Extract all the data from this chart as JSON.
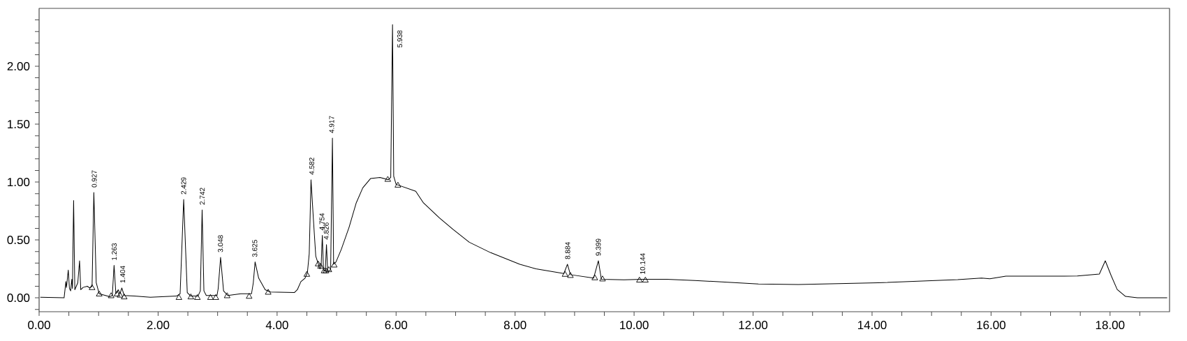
{
  "chart_data": {
    "type": "line",
    "xlim": [
      0,
      19
    ],
    "ylim": [
      -0.12,
      2.5
    ],
    "xticks": [
      {
        "value": 0,
        "label": "0.00"
      },
      {
        "value": 0.5,
        "label": null
      },
      {
        "value": 1,
        "label": null
      },
      {
        "value": 1.5,
        "label": null
      },
      {
        "value": 2,
        "label": "2.00"
      },
      {
        "value": 2.5,
        "label": null
      },
      {
        "value": 3,
        "label": null
      },
      {
        "value": 3.5,
        "label": null
      },
      {
        "value": 4,
        "label": "4.00"
      },
      {
        "value": 4.5,
        "label": null
      },
      {
        "value": 5,
        "label": null
      },
      {
        "value": 5.5,
        "label": null
      },
      {
        "value": 6,
        "label": "6.00"
      },
      {
        "value": 6.5,
        "label": null
      },
      {
        "value": 7,
        "label": null
      },
      {
        "value": 7.5,
        "label": null
      },
      {
        "value": 8,
        "label": "8.00"
      },
      {
        "value": 8.5,
        "label": null
      },
      {
        "value": 9,
        "label": null
      },
      {
        "value": 9.5,
        "label": null
      },
      {
        "value": 10,
        "label": "10.00"
      },
      {
        "value": 10.5,
        "label": null
      },
      {
        "value": 11,
        "label": null
      },
      {
        "value": 11.5,
        "label": null
      },
      {
        "value": 12,
        "label": "12.00"
      },
      {
        "value": 12.5,
        "label": null
      },
      {
        "value": 13,
        "label": null
      },
      {
        "value": 13.5,
        "label": null
      },
      {
        "value": 14,
        "label": "14.00"
      },
      {
        "value": 14.5,
        "label": null
      },
      {
        "value": 15,
        "label": null
      },
      {
        "value": 15.5,
        "label": null
      },
      {
        "value": 16,
        "label": "16.00"
      },
      {
        "value": 16.5,
        "label": null
      },
      {
        "value": 17,
        "label": null
      },
      {
        "value": 17.5,
        "label": null
      },
      {
        "value": 18,
        "label": "18.00"
      },
      {
        "value": 18.5,
        "label": null
      }
    ],
    "yticks": [
      {
        "value": -0.1,
        "label": null
      },
      {
        "value": 0,
        "label": "0.00"
      },
      {
        "value": 0.1,
        "label": null
      },
      {
        "value": 0.2,
        "label": null
      },
      {
        "value": 0.3,
        "label": null
      },
      {
        "value": 0.4,
        "label": null
      },
      {
        "value": 0.5,
        "label": "0.50"
      },
      {
        "value": 0.6,
        "label": null
      },
      {
        "value": 0.7,
        "label": null
      },
      {
        "value": 0.8,
        "label": null
      },
      {
        "value": 0.9,
        "label": null
      },
      {
        "value": 1,
        "label": "1.00"
      },
      {
        "value": 1.1,
        "label": null
      },
      {
        "value": 1.2,
        "label": null
      },
      {
        "value": 1.3,
        "label": null
      },
      {
        "value": 1.4,
        "label": null
      },
      {
        "value": 1.5,
        "label": "1.50"
      },
      {
        "value": 1.6,
        "label": null
      },
      {
        "value": 1.7,
        "label": null
      },
      {
        "value": 1.8,
        "label": null
      },
      {
        "value": 1.9,
        "label": null
      },
      {
        "value": 2,
        "label": "2.00"
      },
      {
        "value": 2.1,
        "label": null
      },
      {
        "value": 2.2,
        "label": null
      },
      {
        "value": 2.3,
        "label": null
      },
      {
        "value": 2.4,
        "label": null
      }
    ],
    "series": [
      {
        "marker": "none",
        "color": "#000000",
        "x": [
          0.02,
          0.42,
          0.45,
          0.46,
          0.49,
          0.51,
          0.53,
          0.55,
          0.56,
          0.58,
          0.6,
          0.65,
          0.68,
          0.7,
          0.74,
          0.81,
          0.85,
          0.89,
          0.92,
          0.96,
          1.01,
          1.19,
          1.23,
          1.26,
          1.29,
          1.33,
          1.36,
          1.39,
          1.43,
          1.6,
          1.87,
          2.31,
          2.37,
          2.43,
          2.49,
          2.55,
          2.67,
          2.71,
          2.74,
          2.77,
          2.81,
          2.99,
          3.01,
          3.05,
          3.1,
          3.17,
          3.39,
          3.57,
          3.6,
          3.63,
          3.69,
          3.8,
          3.89,
          4.29,
          4.34,
          4.4,
          4.47,
          4.51,
          4.54,
          4.57,
          4.61,
          4.65,
          4.72,
          4.74,
          4.76,
          4.78,
          4.81,
          4.83,
          4.85,
          4.9,
          4.93,
          4.95,
          4.99,
          5.08,
          5.21,
          5.33,
          5.44,
          5.57,
          5.73,
          5.87,
          5.91,
          5.94,
          5.96,
          6.0,
          6.33,
          6.46,
          6.73,
          6.96,
          7.23,
          7.59,
          8.08,
          8.35,
          8.82,
          8.88,
          8.93,
          9.32,
          9.4,
          9.45,
          9.83,
          10.14,
          10.55,
          11.02,
          12.09,
          12.76,
          14.1,
          15.44,
          15.84,
          15.98,
          16.25,
          17.45,
          17.82,
          17.92,
          18.02,
          18.12,
          18.26,
          18.46,
          18.96
        ],
        "values": [
          0.005,
          0.0,
          0.14,
          0.09,
          0.24,
          0.08,
          0.06,
          0.16,
          0.08,
          0.84,
          0.07,
          0.13,
          0.32,
          0.07,
          0.09,
          0.1,
          0.085,
          0.1,
          0.91,
          0.13,
          0.035,
          0.01,
          0.02,
          0.28,
          0.035,
          0.07,
          0.035,
          0.085,
          0.02,
          0.015,
          0.005,
          0.015,
          0.035,
          0.85,
          0.045,
          0.015,
          0.015,
          0.06,
          0.76,
          0.06,
          0.02,
          0.02,
          0.08,
          0.35,
          0.06,
          0.02,
          0.035,
          0.035,
          0.13,
          0.31,
          0.17,
          0.07,
          0.05,
          0.045,
          0.07,
          0.14,
          0.17,
          0.22,
          0.38,
          1.02,
          0.68,
          0.36,
          0.25,
          0.27,
          0.54,
          0.24,
          0.23,
          0.46,
          0.23,
          0.24,
          1.38,
          0.29,
          0.31,
          0.42,
          0.61,
          0.82,
          0.95,
          1.03,
          1.04,
          1.02,
          1.04,
          2.36,
          1.05,
          0.98,
          0.92,
          0.82,
          0.69,
          0.59,
          0.48,
          0.39,
          0.29,
          0.25,
          0.21,
          0.29,
          0.2,
          0.17,
          0.32,
          0.16,
          0.155,
          0.16,
          0.16,
          0.15,
          0.12,
          0.115,
          0.13,
          0.157,
          0.17,
          0.165,
          0.187,
          0.188,
          0.205,
          0.32,
          0.19,
          0.072,
          0.012,
          0.0,
          0.0
        ]
      },
      {
        "type": "scatter",
        "marker": "triangle",
        "color": "#000000",
        "x": [
          0.89,
          1.01,
          1.21,
          1.31,
          1.36,
          1.43,
          2.35,
          2.55,
          2.66,
          2.88,
          2.97,
          3.16,
          3.53,
          3.85,
          4.5,
          4.69,
          4.73,
          4.79,
          4.82,
          4.87,
          4.96,
          5.86,
          6.03,
          8.84,
          8.93,
          9.34,
          9.47,
          10.09,
          10.19
        ],
        "values": [
          0.085,
          0.03,
          0.015,
          0.03,
          0.02,
          0.005,
          0.0,
          0.005,
          0.0,
          0.0,
          0.0,
          0.015,
          0.01,
          0.045,
          0.2,
          0.29,
          0.27,
          0.23,
          0.23,
          0.24,
          0.28,
          1.02,
          0.97,
          0.2,
          0.19,
          0.17,
          0.16,
          0.15,
          0.15
        ]
      }
    ],
    "annotations": [
      {
        "text": "0.927",
        "x": 0.927,
        "y": 0.91
      },
      {
        "text": "1.263",
        "x": 1.263,
        "y": 0.28
      },
      {
        "text": "1.404",
        "x": 1.404,
        "y": 0.085
      },
      {
        "text": "2.429",
        "x": 2.429,
        "y": 0.85
      },
      {
        "text": "2.742",
        "x": 2.742,
        "y": 0.76
      },
      {
        "text": "3.048",
        "x": 3.048,
        "y": 0.35
      },
      {
        "text": "3.625",
        "x": 3.625,
        "y": 0.31
      },
      {
        "text": "4.582",
        "x": 4.582,
        "y": 1.02
      },
      {
        "text": "4.754",
        "x": 4.754,
        "y": 0.54
      },
      {
        "text": "4.826",
        "x": 4.826,
        "y": 0.46
      },
      {
        "text": "4.917",
        "x": 4.917,
        "y": 1.38
      },
      {
        "text": "5.938",
        "x": 5.938,
        "y": 2.36
      },
      {
        "text": "8.884",
        "x": 8.884,
        "y": 0.29
      },
      {
        "text": "9.399",
        "x": 9.399,
        "y": 0.32
      },
      {
        "text": "10.144",
        "x": 10.144,
        "y": 0.16
      }
    ]
  }
}
